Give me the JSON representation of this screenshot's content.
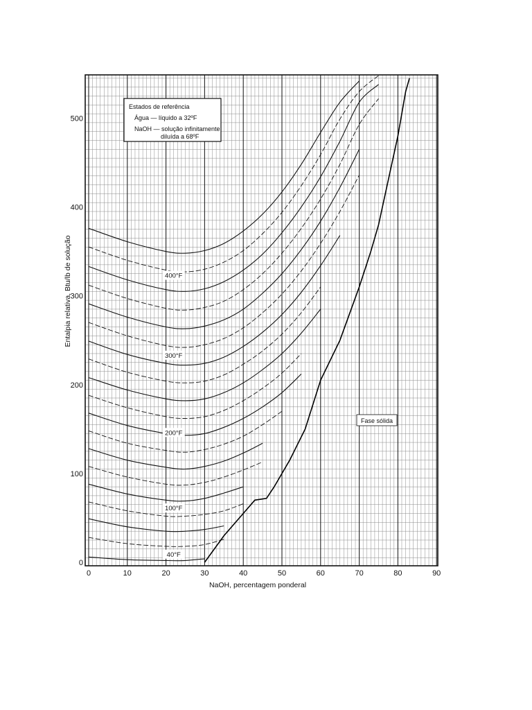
{
  "chart_data": {
    "type": "line",
    "title": "",
    "xlabel": "NaOH, percentagem ponderal",
    "ylabel": "Entalpia relativa, Btu/lb de solução",
    "xlim": [
      0,
      90
    ],
    "ylim": [
      0,
      550
    ],
    "x_ticks": [
      0,
      10,
      20,
      30,
      40,
      50,
      60,
      70,
      80,
      90
    ],
    "y_ticks": [
      0,
      100,
      200,
      300,
      400,
      500
    ],
    "x_tick_labels": [
      "0",
      "10",
      "20",
      "30",
      "40",
      "50",
      "60",
      "70",
      "80",
      "90"
    ],
    "y_tick_labels": [
      "0",
      "100",
      "200",
      "300",
      "400",
      "500"
    ],
    "grid": true,
    "reference_box": {
      "line1": "Estados de referência",
      "line2": "Água — líquido a 32ºF",
      "line3": "NaOH — solução infinitamente",
      "line4": "diluída a 68ºF"
    },
    "region_label": "Fase sólida",
    "isotherm_labels": [
      {
        "text": "40°F",
        "x": 22,
        "y": 8
      },
      {
        "text": "100°F",
        "x": 22,
        "y": 60
      },
      {
        "text": "200°F",
        "x": 22,
        "y": 145
      },
      {
        "text": "300°F",
        "x": 22,
        "y": 232
      },
      {
        "text": "400°F",
        "x": 22,
        "y": 322
      }
    ],
    "series": [
      {
        "temp": 40,
        "points": [
          [
            0,
            6
          ],
          [
            10,
            3
          ],
          [
            20,
            2
          ],
          [
            25,
            2
          ],
          [
            30,
            4
          ]
        ]
      },
      {
        "temp": 60,
        "points": [
          [
            0,
            28
          ],
          [
            10,
            21
          ],
          [
            20,
            18
          ],
          [
            25,
            18
          ],
          [
            30,
            20
          ],
          [
            35,
            26
          ]
        ]
      },
      {
        "temp": 80,
        "points": [
          [
            0,
            49
          ],
          [
            10,
            40
          ],
          [
            20,
            35
          ],
          [
            25,
            35
          ],
          [
            30,
            37
          ],
          [
            35,
            41
          ]
        ]
      },
      {
        "temp": 100,
        "points": [
          [
            0,
            68
          ],
          [
            10,
            58
          ],
          [
            20,
            52
          ],
          [
            25,
            52
          ],
          [
            30,
            54
          ],
          [
            35,
            58
          ],
          [
            40,
            66
          ]
        ]
      },
      {
        "temp": 120,
        "points": [
          [
            0,
            88
          ],
          [
            10,
            77
          ],
          [
            20,
            70
          ],
          [
            25,
            69
          ],
          [
            30,
            72
          ],
          [
            35,
            78
          ],
          [
            40,
            85
          ]
        ]
      },
      {
        "temp": 140,
        "points": [
          [
            0,
            108
          ],
          [
            10,
            96
          ],
          [
            20,
            88
          ],
          [
            25,
            87
          ],
          [
            30,
            90
          ],
          [
            35,
            96
          ],
          [
            40,
            104
          ],
          [
            45,
            113
          ]
        ]
      },
      {
        "temp": 160,
        "points": [
          [
            0,
            128
          ],
          [
            10,
            115
          ],
          [
            20,
            107
          ],
          [
            25,
            105
          ],
          [
            30,
            108
          ],
          [
            35,
            114
          ],
          [
            40,
            123
          ],
          [
            45,
            134
          ]
        ]
      },
      {
        "temp": 180,
        "points": [
          [
            0,
            148
          ],
          [
            10,
            134
          ],
          [
            20,
            126
          ],
          [
            25,
            124
          ],
          [
            30,
            127
          ],
          [
            35,
            133
          ],
          [
            40,
            142
          ],
          [
            45,
            155
          ],
          [
            50,
            170
          ]
        ]
      },
      {
        "temp": 200,
        "points": [
          [
            0,
            168
          ],
          [
            10,
            154
          ],
          [
            20,
            145
          ],
          [
            25,
            143
          ],
          [
            30,
            145
          ],
          [
            35,
            152
          ],
          [
            40,
            162
          ],
          [
            45,
            175
          ],
          [
            50,
            191
          ],
          [
            55,
            212
          ]
        ]
      },
      {
        "temp": 220,
        "points": [
          [
            0,
            188
          ],
          [
            10,
            174
          ],
          [
            20,
            164
          ],
          [
            25,
            162
          ],
          [
            30,
            164
          ],
          [
            35,
            171
          ],
          [
            40,
            182
          ],
          [
            45,
            196
          ],
          [
            50,
            213
          ],
          [
            55,
            235
          ]
        ]
      },
      {
        "temp": 240,
        "points": [
          [
            0,
            208
          ],
          [
            10,
            194
          ],
          [
            20,
            184
          ],
          [
            25,
            182
          ],
          [
            30,
            184
          ],
          [
            35,
            191
          ],
          [
            40,
            202
          ],
          [
            45,
            217
          ],
          [
            50,
            235
          ],
          [
            55,
            258
          ],
          [
            60,
            285
          ]
        ]
      },
      {
        "temp": 260,
        "points": [
          [
            0,
            229
          ],
          [
            10,
            214
          ],
          [
            20,
            204
          ],
          [
            25,
            202
          ],
          [
            30,
            204
          ],
          [
            35,
            211
          ],
          [
            40,
            223
          ],
          [
            45,
            238
          ],
          [
            50,
            257
          ],
          [
            55,
            281
          ],
          [
            60,
            310
          ]
        ]
      },
      {
        "temp": 280,
        "points": [
          [
            0,
            249
          ],
          [
            10,
            234
          ],
          [
            20,
            224
          ],
          [
            25,
            222
          ],
          [
            30,
            224
          ],
          [
            35,
            231
          ],
          [
            40,
            243
          ],
          [
            45,
            259
          ],
          [
            50,
            279
          ],
          [
            55,
            304
          ],
          [
            60,
            334
          ],
          [
            65,
            368
          ]
        ]
      },
      {
        "temp": 300,
        "points": [
          [
            0,
            270
          ],
          [
            10,
            255
          ],
          [
            20,
            244
          ],
          [
            25,
            242
          ],
          [
            30,
            245
          ],
          [
            35,
            252
          ],
          [
            40,
            264
          ],
          [
            45,
            281
          ],
          [
            50,
            302
          ],
          [
            55,
            328
          ],
          [
            60,
            359
          ],
          [
            65,
            395
          ],
          [
            70,
            436
          ]
        ]
      },
      {
        "temp": 320,
        "points": [
          [
            0,
            291
          ],
          [
            10,
            276
          ],
          [
            20,
            265
          ],
          [
            25,
            263
          ],
          [
            30,
            266
          ],
          [
            35,
            273
          ],
          [
            40,
            285
          ],
          [
            45,
            303
          ],
          [
            50,
            325
          ],
          [
            55,
            352
          ],
          [
            60,
            384
          ],
          [
            65,
            422
          ],
          [
            70,
            465
          ]
        ]
      },
      {
        "temp": 340,
        "points": [
          [
            0,
            312
          ],
          [
            10,
            297
          ],
          [
            20,
            286
          ],
          [
            25,
            284
          ],
          [
            30,
            287
          ],
          [
            35,
            294
          ],
          [
            40,
            307
          ],
          [
            45,
            325
          ],
          [
            50,
            348
          ],
          [
            55,
            376
          ],
          [
            60,
            409
          ],
          [
            65,
            448
          ],
          [
            70,
            493
          ],
          [
            75,
            522
          ]
        ]
      },
      {
        "temp": 360,
        "points": [
          [
            0,
            333
          ],
          [
            10,
            318
          ],
          [
            20,
            307
          ],
          [
            25,
            305
          ],
          [
            30,
            308
          ],
          [
            35,
            316
          ],
          [
            40,
            329
          ],
          [
            45,
            347
          ],
          [
            50,
            371
          ],
          [
            55,
            400
          ],
          [
            60,
            434
          ],
          [
            65,
            474
          ],
          [
            70,
            518
          ],
          [
            75,
            538
          ]
        ]
      },
      {
        "temp": 380,
        "points": [
          [
            0,
            355
          ],
          [
            10,
            340
          ],
          [
            20,
            329
          ],
          [
            25,
            327
          ],
          [
            30,
            330
          ],
          [
            35,
            338
          ],
          [
            40,
            351
          ],
          [
            45,
            370
          ],
          [
            50,
            394
          ],
          [
            55,
            424
          ],
          [
            60,
            459
          ],
          [
            65,
            499
          ],
          [
            70,
            530
          ],
          [
            75,
            548
          ]
        ]
      },
      {
        "temp": 400,
        "points": [
          [
            0,
            376
          ],
          [
            10,
            361
          ],
          [
            20,
            350
          ],
          [
            25,
            348
          ],
          [
            30,
            351
          ],
          [
            35,
            359
          ],
          [
            40,
            373
          ],
          [
            45,
            392
          ],
          [
            50,
            417
          ],
          [
            55,
            448
          ],
          [
            60,
            484
          ],
          [
            65,
            518
          ],
          [
            70,
            542
          ]
        ]
      }
    ],
    "saturation_curve": [
      [
        30,
        0
      ],
      [
        35,
        30
      ],
      [
        40,
        55
      ],
      [
        43,
        70
      ],
      [
        46,
        72
      ],
      [
        48,
        85
      ],
      [
        52,
        115
      ],
      [
        56,
        150
      ],
      [
        60,
        205
      ],
      [
        65,
        250
      ],
      [
        70,
        310
      ],
      [
        73,
        350
      ],
      [
        75,
        380
      ],
      [
        78,
        440
      ],
      [
        80,
        480
      ],
      [
        82,
        530
      ],
      [
        83,
        545
      ]
    ]
  }
}
